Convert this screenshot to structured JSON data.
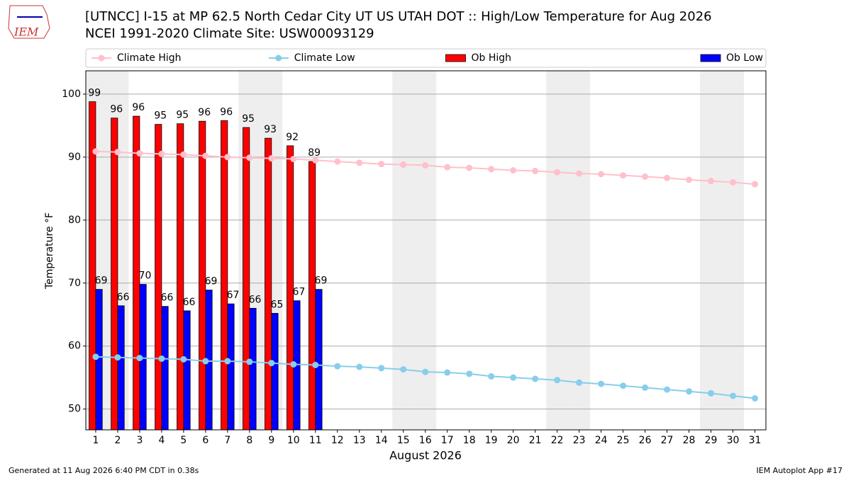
{
  "logo_text": "IEM",
  "footer_left": "Generated at 11 Aug 2026 6:40 PM CDT in 0.38s",
  "footer_right": "IEM Autoplot App #17",
  "chart_data": {
    "type": "bar",
    "title": "[UTNCC] I-15 at MP 62.5 North Cedar City UT US UTAH DOT :: High/Low Temperature for Aug 2026",
    "subtitle": "NCEI 1991-2020 Climate Site: USW00093129",
    "x_label": "August 2026",
    "y_label": "Temperature °F",
    "x": [
      1,
      2,
      3,
      4,
      5,
      6,
      7,
      8,
      9,
      10,
      11,
      12,
      13,
      14,
      15,
      16,
      17,
      18,
      19,
      20,
      21,
      22,
      23,
      24,
      25,
      26,
      27,
      28,
      29,
      30,
      31
    ],
    "xlim": [
      0.55,
      31.5
    ],
    "xticks": [
      1,
      2,
      3,
      4,
      5,
      6,
      7,
      8,
      9,
      10,
      11,
      12,
      13,
      14,
      15,
      16,
      17,
      18,
      19,
      20,
      21,
      22,
      23,
      24,
      25,
      26,
      27,
      28,
      29,
      30,
      31
    ],
    "ylim": [
      46.7,
      103.7
    ],
    "yticks": [
      50,
      60,
      70,
      80,
      90,
      100
    ],
    "grid": true,
    "legend": "top",
    "highlight_days": [
      1,
      2,
      8,
      9,
      15,
      16,
      22,
      23,
      29,
      30
    ],
    "highlight_color": "#eeeeee",
    "series": [
      {
        "name": "Climate High",
        "type": "line",
        "color": "#ffc0cb",
        "values": [
          90.9,
          90.8,
          90.6,
          90.5,
          90.4,
          90.2,
          90.0,
          89.9,
          89.8,
          89.7,
          89.5,
          89.3,
          89.1,
          88.9,
          88.8,
          88.7,
          88.4,
          88.3,
          88.1,
          87.9,
          87.8,
          87.6,
          87.4,
          87.3,
          87.1,
          86.9,
          86.7,
          86.4,
          86.2,
          86.0,
          85.7
        ]
      },
      {
        "name": "Climate Low",
        "type": "line",
        "color": "#87ceeb",
        "values": [
          58.3,
          58.2,
          58.1,
          58.0,
          57.9,
          57.6,
          57.6,
          57.5,
          57.3,
          57.1,
          57.0,
          56.8,
          56.7,
          56.5,
          56.3,
          55.9,
          55.8,
          55.6,
          55.2,
          55.0,
          54.8,
          54.6,
          54.2,
          54.0,
          53.7,
          53.4,
          53.1,
          52.8,
          52.5,
          52.1,
          51.7
        ]
      },
      {
        "name": "Ob High",
        "type": "bar",
        "color": "#ff0000",
        "values": [
          98.8,
          96.2,
          96.5,
          95.2,
          95.3,
          95.7,
          95.8,
          94.7,
          93.0,
          91.8,
          89.3,
          null,
          null,
          null,
          null,
          null,
          null,
          null,
          null,
          null,
          null,
          null,
          null,
          null,
          null,
          null,
          null,
          null,
          null,
          null,
          null
        ],
        "value_labels": [
          "99",
          "96",
          "96",
          "95",
          "95",
          "96",
          "96",
          "95",
          "93",
          "92",
          "89",
          null,
          null,
          null,
          null,
          null,
          null,
          null,
          null,
          null,
          null,
          null,
          null,
          null,
          null,
          null,
          null,
          null,
          null,
          null,
          null
        ]
      },
      {
        "name": "Ob Low",
        "type": "bar",
        "color": "#0000ff",
        "values": [
          69.0,
          66.4,
          69.8,
          66.3,
          65.6,
          68.9,
          66.7,
          66.0,
          65.2,
          67.2,
          69.0,
          null,
          null,
          null,
          null,
          null,
          null,
          null,
          null,
          null,
          null,
          null,
          null,
          null,
          null,
          null,
          null,
          null,
          null,
          null,
          null
        ],
        "value_labels": [
          "69",
          "66",
          "70",
          "66",
          "66",
          "69",
          "67",
          "66",
          "65",
          "67",
          "69",
          null,
          null,
          null,
          null,
          null,
          null,
          null,
          null,
          null,
          null,
          null,
          null,
          null,
          null,
          null,
          null,
          null,
          null,
          null,
          null
        ]
      }
    ]
  }
}
